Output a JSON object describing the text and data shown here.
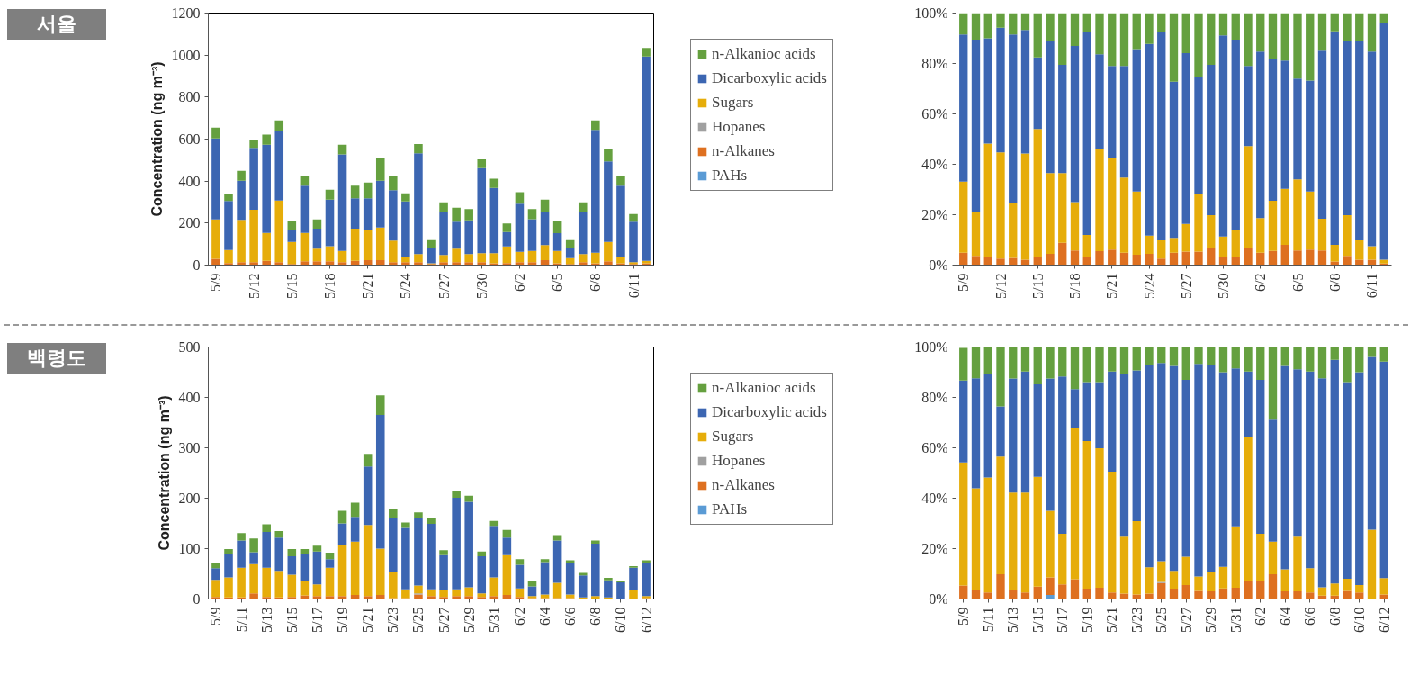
{
  "chart_data": [
    {
      "type": "bar",
      "title": "서울",
      "stacked": true,
      "legend": "right",
      "ylabel": "Concentration (ng m⁻³)",
      "ylim": [
        0,
        1200
      ],
      "yticks": [
        0,
        200,
        400,
        600,
        800,
        1000,
        1200
      ],
      "categories": [
        "5/9",
        null,
        null,
        "5/12",
        null,
        null,
        "5/15",
        null,
        null,
        "5/18",
        null,
        null,
        "5/21",
        null,
        null,
        "5/24",
        null,
        null,
        "5/27",
        null,
        null,
        "5/30",
        null,
        null,
        "6/2",
        null,
        null,
        "6/5",
        null,
        null,
        "6/8",
        null,
        null,
        "6/11",
        null
      ],
      "series": [
        {
          "name": "PAHs",
          "color": "#5a9bd5",
          "values": [
            0,
            0,
            0,
            0,
            0,
            0,
            0,
            0,
            0,
            0,
            0,
            0,
            0,
            0,
            0,
            0,
            0,
            0,
            0,
            0,
            0,
            0,
            0,
            0,
            0,
            0,
            0,
            0,
            0,
            0,
            0,
            0,
            0,
            0,
            0
          ]
        },
        {
          "name": "n-Alkanes",
          "color": "#de7020",
          "values": [
            30,
            10,
            14,
            14,
            20,
            14,
            5,
            18,
            18,
            18,
            14,
            20,
            24,
            24,
            14,
            14,
            14,
            5,
            14,
            14,
            14,
            14,
            9,
            10,
            14,
            14,
            24,
            9,
            5,
            14,
            9,
            18,
            9,
            5,
            9
          ]
        },
        {
          "name": "Hopanes",
          "color": "#a0a0a0",
          "values": [
            0,
            0,
            0,
            0,
            0,
            0,
            0,
            0,
            0,
            0,
            0,
            0,
            0,
            0,
            0,
            0,
            0,
            0,
            0,
            0,
            0,
            0,
            0,
            0,
            0,
            0,
            0,
            0,
            0,
            0,
            0,
            0,
            0,
            0,
            0
          ]
        },
        {
          "name": "Sugars",
          "color": "#e6ad0a",
          "values": [
            188,
            62,
            201,
            250,
            133,
            294,
            105,
            135,
            60,
            72,
            54,
            154,
            144,
            155,
            103,
            24,
            39,
            4,
            34,
            64,
            39,
            43,
            48,
            79,
            49,
            54,
            71,
            59,
            28,
            39,
            50,
            92,
            29,
            9,
            11
          ]
        },
        {
          "name": "Dicarboxylic acids",
          "color": "#3c66b2",
          "values": [
            385,
            233,
            187,
            294,
            420,
            330,
            58,
            225,
            96,
            222,
            459,
            144,
            150,
            223,
            240,
            265,
            480,
            74,
            206,
            129,
            160,
            405,
            311,
            69,
            230,
            151,
            157,
            84,
            50,
            201,
            585,
            384,
            340,
            193,
            973
          ]
        },
        {
          "name": "n-Alkanioc acids",
          "color": "#65a03f",
          "values": [
            52,
            33,
            47,
            36,
            48,
            51,
            41,
            45,
            44,
            47,
            46,
            60,
            75,
            107,
            66,
            39,
            43,
            36,
            45,
            66,
            54,
            42,
            43,
            40,
            54,
            48,
            60,
            57,
            36,
            45,
            45,
            60,
            45,
            36,
            41
          ]
        }
      ]
    },
    {
      "type": "bar",
      "stacked": true,
      "ylim": [
        0,
        100
      ],
      "yticks": [
        {
          "value": 0,
          "label": "0%"
        },
        {
          "value": 20,
          "label": "20%"
        },
        {
          "value": 40,
          "label": "40%"
        },
        {
          "value": 60,
          "label": "60%"
        },
        {
          "value": 80,
          "label": "80%"
        },
        {
          "value": 100,
          "label": "100%"
        }
      ],
      "categories": [
        "5/9",
        null,
        null,
        "5/12",
        null,
        null,
        "5/15",
        null,
        null,
        "5/18",
        null,
        null,
        "5/21",
        null,
        null,
        "5/24",
        null,
        null,
        "5/27",
        null,
        null,
        "5/30",
        null,
        null,
        "6/2",
        null,
        null,
        "6/5",
        null,
        null,
        "6/8",
        null,
        null,
        "6/11",
        null
      ],
      "series": [
        {
          "color": "#5a9bd5",
          "values": [
            0,
            0,
            0,
            0,
            0,
            0,
            0,
            0,
            0,
            0,
            0,
            0,
            0,
            0,
            0,
            0,
            0,
            0,
            0,
            0,
            0,
            0,
            0,
            0,
            0,
            0,
            0,
            0,
            0,
            0,
            0,
            0,
            0,
            0,
            0
          ]
        },
        {
          "color": "#de7020",
          "values": [
            4.9,
            3.7,
            3.2,
            2.6,
            2.9,
            2.1,
            3.2,
            4.5,
            8.8,
            5.8,
            3.2,
            5.5,
            6.2,
            4.9,
            4.1,
            4.5,
            2.6,
            4.9,
            5.4,
            5.4,
            6.7,
            3.1,
            3.1,
            7.0,
            4.9,
            5.6,
            8.0,
            5.8,
            6.2,
            5.8,
            1.4,
            3.7,
            2.1,
            2.1,
            0.6
          ]
        },
        {
          "color": "#a0a0a0",
          "values": [
            0,
            0,
            0,
            0,
            0,
            0,
            0,
            0,
            0,
            0,
            0,
            0,
            0,
            0,
            0,
            0,
            0,
            0,
            0,
            0,
            0,
            0,
            0,
            0,
            0,
            0,
            0,
            0,
            0,
            0,
            0,
            0,
            0,
            0,
            0
          ]
        },
        {
          "color": "#e6ad0a",
          "values": [
            28.2,
            17.2,
            45.0,
            42.1,
            21.8,
            42.2,
            50.8,
            32.0,
            27.7,
            19.2,
            8.8,
            40.5,
            36.5,
            29.8,
            25.1,
            7.2,
            7.2,
            5.9,
            10.9,
            22.6,
            13.1,
            8.2,
            10.7,
            40.2,
            13.8,
            19.9,
            22.3,
            28.2,
            23.0,
            12.6,
            6.6,
            16.1,
            7.7,
            5.4,
            1.5
          ]
        },
        {
          "color": "#3c66b2",
          "values": [
            58.4,
            68.6,
            41.8,
            49.5,
            66.8,
            49.0,
            28.4,
            52.5,
            43.0,
            62.0,
            80.5,
            37.7,
            36.3,
            44.3,
            56.5,
            76.1,
            82.7,
            62.0,
            67.8,
            46.7,
            59.7,
            79.9,
            75.7,
            31.8,
            66.0,
            56.4,
            50.9,
            40.0,
            44.0,
            66.7,
            84.8,
            69.2,
            79.2,
            77.2,
            94.0
          ]
        },
        {
          "color": "#65a03f",
          "values": [
            8.5,
            10.5,
            10.0,
            5.8,
            8.5,
            6.7,
            17.6,
            11.0,
            20.5,
            13.0,
            7.5,
            16.3,
            21.0,
            21.0,
            14.3,
            12.2,
            7.5,
            27.2,
            15.9,
            25.3,
            20.5,
            8.8,
            10.5,
            21.0,
            15.3,
            18.1,
            18.8,
            26.0,
            26.8,
            14.9,
            7.2,
            11.0,
            11.0,
            15.3,
            3.9
          ]
        }
      ]
    },
    {
      "type": "bar",
      "title": "백령도",
      "stacked": true,
      "legend": "right",
      "ylabel": "Concentration (ng m⁻³)",
      "ylim": [
        0,
        500
      ],
      "yticks": [
        0,
        100,
        200,
        300,
        400,
        500
      ],
      "categories": [
        "5/9",
        null,
        "5/11",
        null,
        "5/13",
        null,
        "5/15",
        null,
        "5/17",
        null,
        "5/19",
        null,
        "5/21",
        null,
        "5/23",
        null,
        "5/25",
        null,
        "5/27",
        null,
        "5/29",
        null,
        "5/31",
        null,
        "6/2",
        null,
        "6/4",
        null,
        "6/6",
        null,
        "6/8",
        null,
        "6/10",
        null,
        "6/12"
      ],
      "series": [
        {
          "name": "PAHs",
          "color": "#5a9bd5",
          "values": [
            0,
            0,
            0,
            0,
            0,
            0,
            0,
            0,
            0,
            0,
            0,
            0,
            0,
            0,
            0,
            0,
            0,
            0,
            0,
            0,
            0,
            0,
            0,
            0,
            0,
            0,
            0,
            0,
            0,
            0,
            0,
            0,
            0,
            0,
            0
          ]
        },
        {
          "name": "n-Alkanes",
          "color": "#de7020",
          "values": [
            4,
            3,
            3,
            11,
            4,
            3,
            4,
            7,
            6,
            6,
            6,
            8,
            6,
            8,
            2,
            2,
            9,
            6,
            4,
            6,
            6,
            4,
            6,
            8,
            4,
            2,
            2,
            2,
            2,
            1,
            1,
            1,
            null,
            1,
            2
          ]
        },
        {
          "name": "Hopanes",
          "color": "#a0a0a0",
          "values": [
            0,
            0,
            0,
            0,
            0,
            0,
            0,
            0,
            0,
            0,
            0,
            0,
            0,
            0,
            0,
            0,
            2,
            0,
            0,
            0,
            0,
            0,
            0,
            0,
            0,
            0,
            0,
            0,
            0,
            0,
            0,
            0,
            0,
            0,
            0
          ]
        },
        {
          "name": "Sugars",
          "color": "#e6ad0a",
          "values": [
            34,
            40,
            59,
            58,
            58,
            53,
            44,
            28,
            23,
            56,
            102,
            106,
            141,
            92,
            52,
            17,
            16,
            13,
            13,
            13,
            17,
            7,
            37,
            79,
            17,
            4,
            7,
            30,
            7,
            2,
            5,
            2,
            0,
            16,
            4
          ]
        },
        {
          "name": "Dicarboxylic acids",
          "color": "#3c66b2",
          "values": [
            23,
            46,
            54,
            24,
            71,
            66,
            37,
            54,
            65,
            17,
            42,
            49,
            116,
            265,
            107,
            122,
            134,
            130,
            70,
            182,
            170,
            74,
            102,
            35,
            47,
            19,
            64,
            84,
            62,
            44,
            104,
            34,
            33,
            45,
            66
          ]
        },
        {
          "name": "n-Alkanioc acids",
          "color": "#65a03f",
          "values": [
            10,
            10,
            15,
            27,
            15,
            13,
            14,
            10,
            12,
            13,
            25,
            28,
            25,
            39,
            17,
            11,
            11,
            11,
            10,
            13,
            12,
            9,
            10,
            15,
            11,
            10,
            6,
            11,
            6,
            5,
            6,
            5,
            2,
            3,
            5
          ]
        }
      ]
    },
    {
      "type": "bar",
      "stacked": true,
      "ylim": [
        0,
        100
      ],
      "yticks": [
        {
          "value": 0,
          "label": "0%"
        },
        {
          "value": 20,
          "label": "20%"
        },
        {
          "value": 40,
          "label": "40%"
        },
        {
          "value": 60,
          "label": "60%"
        },
        {
          "value": 80,
          "label": "80%"
        },
        {
          "value": 100,
          "label": "100%"
        }
      ],
      "categories": [
        "5/9",
        null,
        "5/11",
        null,
        "5/13",
        null,
        "5/15",
        null,
        "5/17",
        null,
        "5/19",
        null,
        "5/21",
        null,
        "5/23",
        null,
        "5/25",
        null,
        "5/27",
        null,
        "5/29",
        null,
        "5/31",
        null,
        "6/2",
        null,
        "6/4",
        null,
        "6/6",
        null,
        "6/8",
        null,
        "6/10",
        null,
        "6/12"
      ],
      "series": [
        {
          "color": "#5a9bd5",
          "values": [
            null,
            0,
            0,
            0,
            0,
            0,
            0,
            1.6,
            0,
            0,
            0,
            0,
            0,
            0,
            0,
            0,
            0,
            0,
            0,
            0,
            0,
            0,
            0,
            0,
            0,
            0,
            0,
            0,
            0,
            0,
            0,
            0,
            0,
            0,
            0
          ]
        },
        {
          "color": "#de7020",
          "values": [
            5.4,
            3.7,
            2.6,
            9.8,
            3.7,
            2.6,
            4.9,
            7.0,
            5.8,
            7.9,
            4.1,
            4.5,
            2.6,
            2.1,
            1.8,
            2.1,
            6.3,
            4.1,
            5.5,
            3.2,
            3.0,
            4.2,
            4.5,
            7.0,
            7.0,
            9.8,
            3.0,
            3.0,
            2.6,
            1.3,
            1.3,
            3.2,
            2.6,
            0.2,
            1.8
          ]
        },
        {
          "color": "#a0a0a0",
          "values": [
            0,
            0,
            0,
            0,
            0,
            0,
            0,
            0,
            0,
            0,
            0,
            0,
            0,
            0,
            0,
            0,
            0.5,
            0,
            0,
            0,
            0,
            0,
            0,
            0,
            0,
            0,
            0,
            0,
            0,
            0,
            0,
            0,
            0,
            0,
            0
          ]
        },
        {
          "color": "#e6ad0a",
          "values": [
            48.8,
            40.2,
            45.6,
            46.7,
            38.5,
            39.6,
            43.6,
            26.4,
            20.1,
            59.8,
            58.6,
            55.3,
            47.9,
            22.6,
            29.1,
            10.5,
            8.2,
            7.1,
            11.3,
            5.7,
            7.5,
            8.6,
            24.3,
            57.5,
            18.9,
            13.0,
            8.8,
            21.7,
            9.6,
            3.3,
            4.9,
            4.8,
            2.9,
            27.3,
            6.5
          ]
        },
        {
          "color": "#3c66b2",
          "values": [
            32.5,
            43.7,
            41.3,
            19.9,
            45.3,
            48.1,
            36.7,
            52.5,
            62.4,
            15.6,
            23.4,
            26.3,
            39.8,
            64.8,
            59.8,
            80.2,
            78.7,
            81.3,
            70.2,
            84.4,
            82.3,
            77.2,
            62.7,
            25.8,
            61.1,
            48.4,
            80.7,
            66.5,
            78.1,
            83.0,
            88.7,
            78.1,
            84.5,
            68.6,
            85.9
          ]
        },
        {
          "color": "#65a03f",
          "values": [
            12.9,
            12.4,
            10.5,
            23.6,
            12.5,
            9.7,
            14.8,
            12.5,
            11.7,
            16.7,
            13.9,
            13.9,
            9.7,
            10.5,
            9.3,
            7.2,
            6.3,
            7.5,
            13.0,
            6.7,
            7.2,
            10.0,
            8.5,
            9.7,
            13.0,
            28.8,
            7.5,
            8.8,
            9.7,
            12.4,
            5.1,
            13.9,
            10.0,
            3.9,
            5.8
          ]
        }
      ]
    }
  ]
}
